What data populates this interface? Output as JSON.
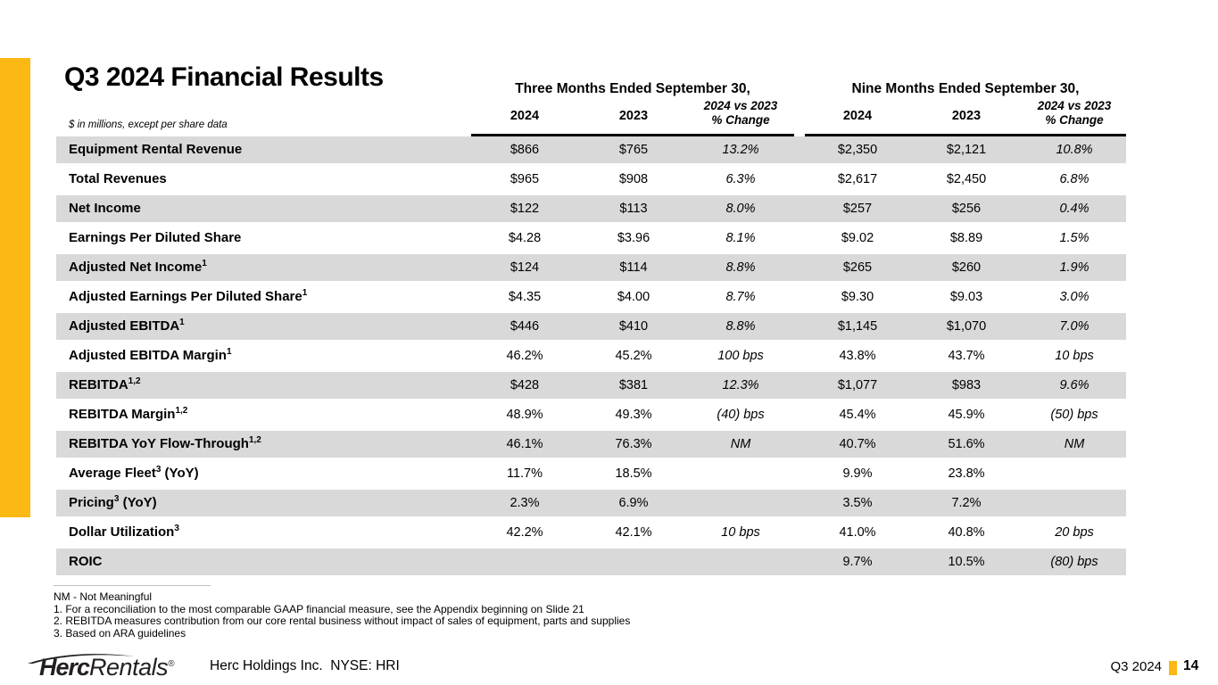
{
  "slide": {
    "title": "Q3 2024 Financial Results",
    "units_note": "$ in millions, except per share data"
  },
  "table": {
    "group_headers": [
      "Three Months Ended September 30,",
      "Nine Months Ended September 30,"
    ],
    "sub_headers": {
      "year1": "2024",
      "year2": "2023",
      "change_line1": "2024 vs 2023",
      "change_line2": "% Change"
    },
    "rows": [
      {
        "label": "Equipment Rental Revenue",
        "sup": "",
        "suffix": "",
        "values": [
          "$866",
          "$765",
          "13.2%",
          "$2,350",
          "$2,121",
          "10.8%"
        ]
      },
      {
        "label": "Total Revenues",
        "sup": "",
        "suffix": "",
        "values": [
          "$965",
          "$908",
          "6.3%",
          "$2,617",
          "$2,450",
          "6.8%"
        ]
      },
      {
        "label": "Net Income",
        "sup": "",
        "suffix": "",
        "values": [
          "$122",
          "$113",
          "8.0%",
          "$257",
          "$256",
          "0.4%"
        ]
      },
      {
        "label": "Earnings Per Diluted Share",
        "sup": "",
        "suffix": "",
        "values": [
          "$4.28",
          "$3.96",
          "8.1%",
          "$9.02",
          "$8.89",
          "1.5%"
        ]
      },
      {
        "label": "Adjusted Net Income",
        "sup": "1",
        "suffix": "",
        "values": [
          "$124",
          "$114",
          "8.8%",
          "$265",
          "$260",
          "1.9%"
        ]
      },
      {
        "label": "Adjusted Earnings Per Diluted Share",
        "sup": "1",
        "suffix": "",
        "values": [
          "$4.35",
          "$4.00",
          "8.7%",
          "$9.30",
          "$9.03",
          "3.0%"
        ]
      },
      {
        "label": "Adjusted EBITDA",
        "sup": "1",
        "suffix": "",
        "values": [
          "$446",
          "$410",
          "8.8%",
          "$1,145",
          "$1,070",
          "7.0%"
        ]
      },
      {
        "label": "Adjusted EBITDA Margin",
        "sup": "1",
        "suffix": "",
        "values": [
          "46.2%",
          "45.2%",
          "100 bps",
          "43.8%",
          "43.7%",
          "10 bps"
        ]
      },
      {
        "label": "REBITDA",
        "sup": "1,2",
        "suffix": "",
        "values": [
          "$428",
          "$381",
          "12.3%",
          "$1,077",
          "$983",
          "9.6%"
        ]
      },
      {
        "label": "REBITDA Margin",
        "sup": "1,2",
        "suffix": "",
        "values": [
          "48.9%",
          "49.3%",
          "(40) bps",
          "45.4%",
          "45.9%",
          "(50) bps"
        ]
      },
      {
        "label": "REBITDA YoY Flow-Through",
        "sup": "1,2",
        "suffix": "",
        "values": [
          "46.1%",
          "76.3%",
          "NM",
          "40.7%",
          "51.6%",
          "NM"
        ]
      },
      {
        "label": "Average Fleet",
        "sup": "3",
        "suffix": " (YoY)",
        "values": [
          "11.7%",
          "18.5%",
          "",
          "9.9%",
          "23.8%",
          ""
        ]
      },
      {
        "label": "Pricing",
        "sup": "3",
        "suffix": " (YoY)",
        "values": [
          "2.3%",
          "6.9%",
          "",
          "3.5%",
          "7.2%",
          ""
        ]
      },
      {
        "label": "Dollar Utilization",
        "sup": "3",
        "suffix": "",
        "values": [
          "42.2%",
          "42.1%",
          "10 bps",
          "41.0%",
          "40.8%",
          "20 bps"
        ]
      },
      {
        "label": "ROIC",
        "sup": "",
        "suffix": "",
        "values": [
          "",
          "",
          "",
          "9.7%",
          "10.5%",
          "(80) bps"
        ]
      }
    ]
  },
  "footnotes": [
    "NM - Not Meaningful",
    "1. For a reconciliation to the most comparable GAAP financial measure, see the Appendix beginning on Slide 21",
    "2. REBITDA measures contribution from our core rental business without impact of sales of equipment, parts and supplies",
    "3. Based on ARA guidelines"
  ],
  "footer": {
    "logo_herc": "Herc",
    "logo_rentals": "Rentals",
    "logo_reg": "®",
    "company": "Herc Holdings Inc.  NYSE: HRI",
    "period": "Q3 2024",
    "page": "14"
  },
  "colors": {
    "accent_yellow": "#FCB813",
    "row_band": "#D9D9D9"
  }
}
